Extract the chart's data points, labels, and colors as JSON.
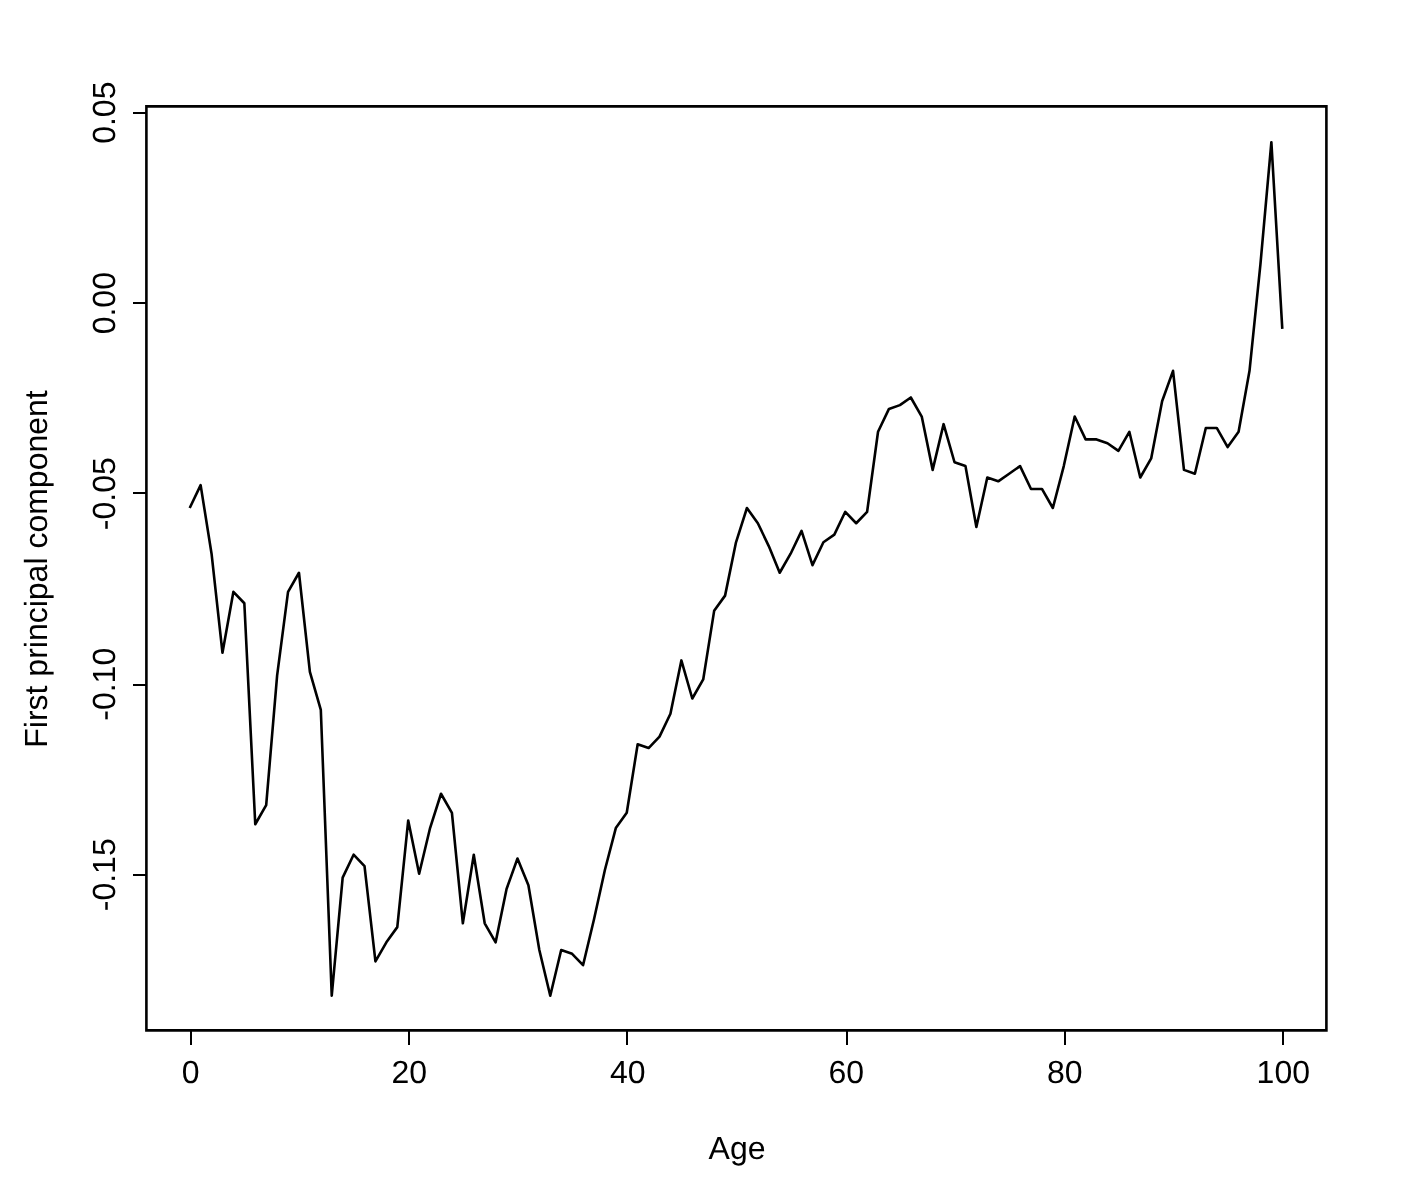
{
  "chart_data": {
    "type": "line",
    "xlabel": "Age",
    "ylabel": "First principal component",
    "x": [
      0,
      1,
      2,
      3,
      4,
      5,
      6,
      7,
      8,
      9,
      10,
      11,
      12,
      13,
      14,
      15,
      16,
      17,
      18,
      19,
      20,
      21,
      22,
      23,
      24,
      25,
      26,
      27,
      28,
      29,
      30,
      31,
      32,
      33,
      34,
      35,
      36,
      37,
      38,
      39,
      40,
      41,
      42,
      43,
      44,
      45,
      46,
      47,
      48,
      49,
      50,
      51,
      52,
      53,
      54,
      55,
      56,
      57,
      58,
      59,
      60,
      61,
      62,
      63,
      64,
      65,
      66,
      67,
      68,
      69,
      70,
      71,
      72,
      73,
      74,
      75,
      76,
      77,
      78,
      79,
      80,
      81,
      82,
      83,
      84,
      85,
      86,
      87,
      88,
      89,
      90,
      91,
      92,
      93,
      94,
      95,
      96,
      97,
      98,
      99,
      100
    ],
    "series": [
      {
        "color": "#000000",
        "values": [
          -0.054,
          -0.048,
          -0.066,
          -0.092,
          -0.076,
          -0.079,
          -0.137,
          -0.132,
          -0.098,
          -0.076,
          -0.071,
          -0.097,
          -0.107,
          -0.182,
          -0.151,
          -0.145,
          -0.148,
          -0.173,
          -0.168,
          -0.164,
          -0.136,
          -0.15,
          -0.138,
          -0.129,
          -0.134,
          -0.163,
          -0.145,
          -0.163,
          -0.168,
          -0.154,
          -0.146,
          -0.153,
          -0.17,
          -0.182,
          -0.17,
          -0.171,
          -0.174,
          -0.162,
          -0.149,
          -0.138,
          -0.134,
          -0.116,
          -0.117,
          -0.114,
          -0.108,
          -0.094,
          -0.104,
          -0.099,
          -0.081,
          -0.077,
          -0.063,
          -0.054,
          -0.058,
          -0.064,
          -0.071,
          -0.066,
          -0.06,
          -0.069,
          -0.063,
          -0.061,
          -0.055,
          -0.058,
          -0.055,
          -0.034,
          -0.028,
          -0.027,
          -0.025,
          -0.03,
          -0.044,
          -0.032,
          -0.042,
          -0.043,
          -0.059,
          -0.046,
          -0.047,
          -0.045,
          -0.043,
          -0.049,
          -0.049,
          -0.054,
          -0.043,
          -0.03,
          -0.036,
          -0.036,
          -0.037,
          -0.039,
          -0.034,
          -0.046,
          -0.041,
          -0.026,
          -0.018,
          -0.044,
          -0.045,
          -0.033,
          -0.033,
          -0.038,
          -0.034,
          -0.018,
          0.01,
          0.042,
          -0.007
        ]
      }
    ],
    "xlim": [
      -4,
      104
    ],
    "ylim": [
      -0.191,
      0.0515
    ],
    "xticks": [
      0,
      20,
      40,
      60,
      80,
      100
    ],
    "yticks": [
      -0.15,
      {
        "value": -0.1,
        "label": "-0.10"
      },
      -0.05,
      {
        "value": 0,
        "label": "0.00"
      },
      0.05
    ],
    "grid": false,
    "line_style": "solid",
    "marker": "none"
  }
}
